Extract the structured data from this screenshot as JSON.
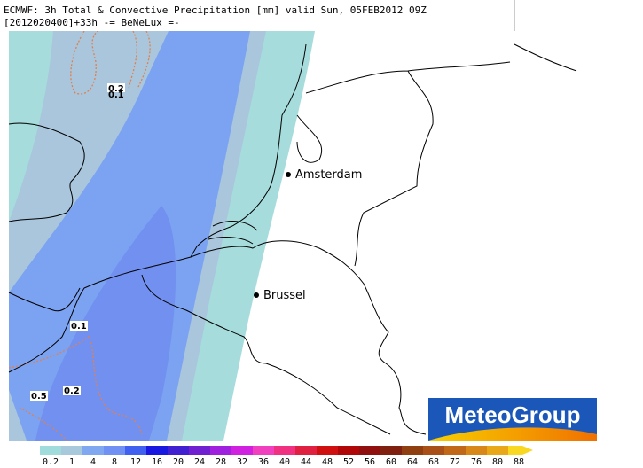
{
  "header": {
    "line1": "ECMWF: 3h Total & Convective Precipitation [mm] valid Sun, 05FEB2012 09Z",
    "line2": "[2012020400]+33h -= BeNeLux =-"
  },
  "cities": [
    {
      "name": "Amsterdam"
    },
    {
      "name": "Brussel"
    }
  ],
  "contour_labels": [
    "0.2",
    "0.1",
    "0.1",
    "0.2",
    "0.5"
  ],
  "logo": {
    "text": "MeteoGroup"
  },
  "legend": {
    "labels": [
      "0.2",
      "1",
      "4",
      "8",
      "12",
      "16",
      "20",
      "24",
      "28",
      "32",
      "36",
      "40",
      "44",
      "48",
      "52",
      "56",
      "60",
      "64",
      "68",
      "72",
      "76",
      "80",
      "88"
    ],
    "colors": [
      "#a0dcdc",
      "#a8c8dc",
      "#80a8f0",
      "#7090f4",
      "#4060f0",
      "#1818e0",
      "#4020d0",
      "#7020d0",
      "#a020e0",
      "#d020e0",
      "#f040c0",
      "#f03080",
      "#e02040",
      "#d01010",
      "#b00808",
      "#901010",
      "#802010",
      "#904010",
      "#a85018",
      "#c06818",
      "#d88818",
      "#e8a818",
      "#f8d820"
    ]
  }
}
